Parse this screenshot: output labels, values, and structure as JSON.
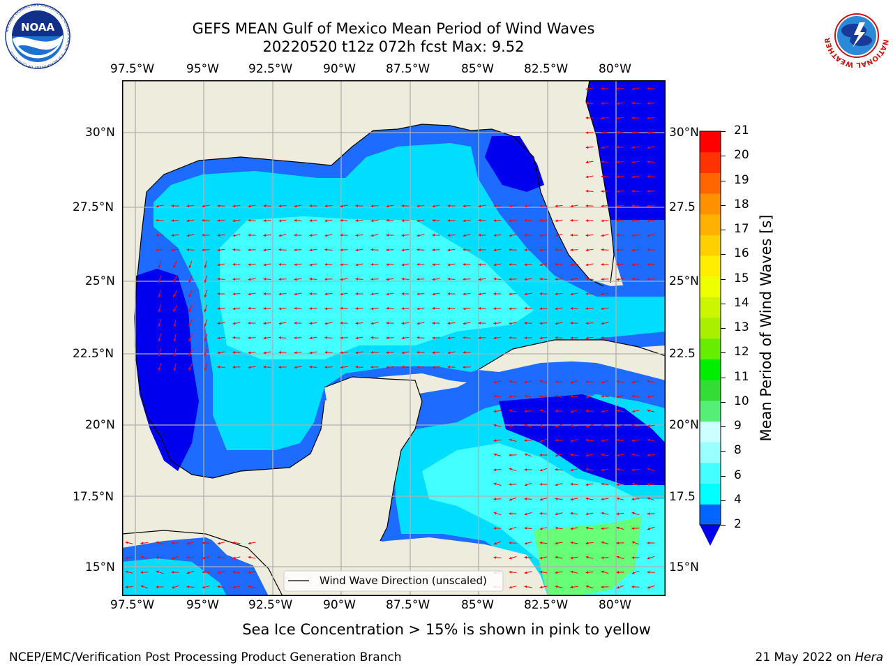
{
  "title": {
    "line1": "GEFS MEAN Gulf of Mexico Mean Period of Wind Waves",
    "line2": "20220520 t12z 072h fcst   Max: 9.52"
  },
  "logos": {
    "left": "NOAA",
    "left_ring": "NATIONAL OCEANIC AND ATMOSPHERIC ADMINISTRATION · U.S. DEPARTMENT OF COMMERCE",
    "right_ring": "NATIONAL WEATHER SERVICE"
  },
  "map": {
    "lon_ticks": [
      "97.5°W",
      "95°W",
      "92.5°W",
      "90°W",
      "87.5°W",
      "85°W",
      "82.5°W",
      "80°W"
    ],
    "lat_ticks_left": [
      "30°N",
      "27.5°N",
      "25°N",
      "22.5°N",
      "20°N",
      "17.5°N",
      "15°N"
    ],
    "lat_ticks_right": [
      "30°N",
      "27.5",
      "25°N",
      "22.5",
      "20°N",
      "17.5",
      "15°N"
    ],
    "legend_label": "Wind Wave Direction (unscaled)",
    "colors": {
      "land": "#eeecdc",
      "c2": "#0000ee",
      "c3": "#1e6cff",
      "c4": "#00ddff",
      "c5": "#44ffff",
      "c6": "#a6ffff",
      "c7": "#66ff77",
      "arrow": "#ff0000",
      "grid": "#b0b0b0"
    }
  },
  "colorbar": {
    "label": "Mean Period of Wind Waves [s]",
    "ticks": [
      "2",
      "4",
      "6",
      "8",
      "9",
      "10",
      "11",
      "12",
      "13",
      "14",
      "15",
      "16",
      "17",
      "18",
      "19",
      "20",
      "21"
    ],
    "colors": [
      "#0066ff",
      "#00ffff",
      "#44ffff",
      "#99ffff",
      "#ccffff",
      "#55ee77",
      "#33dd33",
      "#00ee00",
      "#66ee00",
      "#aaee00",
      "#ccf500",
      "#eeff00",
      "#ffee00",
      "#ffd000",
      "#ffb000",
      "#ff9000",
      "#ff6600",
      "#ff3300",
      "#ff0000"
    ],
    "extend_color": "#0000ee"
  },
  "bottom_note": "Sea Ice Concentration > 15% is shown in pink to yellow",
  "footer": {
    "left": "NCEP/EMC/Verification Post Processing Product Generation Branch",
    "right_date": "21 May 2022 on ",
    "right_host": "Hera"
  }
}
